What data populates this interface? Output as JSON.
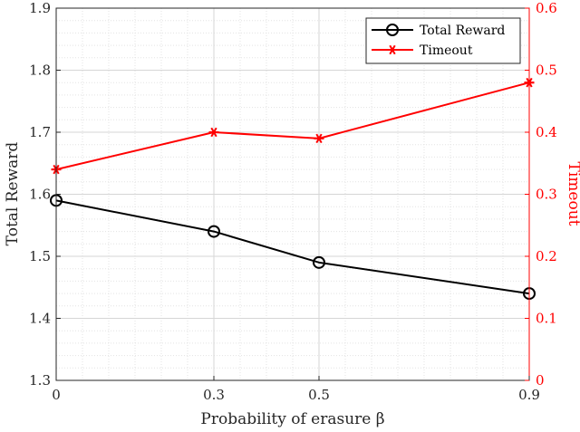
{
  "chart_data": {
    "type": "line",
    "title": "",
    "xlabel": "Probability of erasure β",
    "ylabel_left": "Total Reward",
    "ylabel_right": "Timeout",
    "x": [
      0,
      0.3,
      0.5,
      0.9
    ],
    "x_ticks": [
      "0",
      "0.3",
      "0.5",
      "0.9"
    ],
    "xlim": [
      0,
      0.9
    ],
    "ylim_left": [
      1.3,
      1.9
    ],
    "ylim_right": [
      0,
      0.6
    ],
    "y_left_ticks": [
      "1.3",
      "1.4",
      "1.5",
      "1.6",
      "1.7",
      "1.8",
      "1.9"
    ],
    "y_right_ticks": [
      "0",
      "0.1",
      "0.2",
      "0.3",
      "0.4",
      "0.5",
      "0.6"
    ],
    "grid": "major and minor",
    "legend_position": "top-right",
    "series": [
      {
        "name": "Total Reward",
        "axis": "left",
        "color": "#000000",
        "marker": "circle",
        "values": [
          1.59,
          1.54,
          1.49,
          1.44
        ]
      },
      {
        "name": "Timeout",
        "axis": "right",
        "color": "#ff0000",
        "marker": "asterisk",
        "values": [
          0.34,
          0.4,
          0.39,
          0.48
        ]
      }
    ]
  }
}
